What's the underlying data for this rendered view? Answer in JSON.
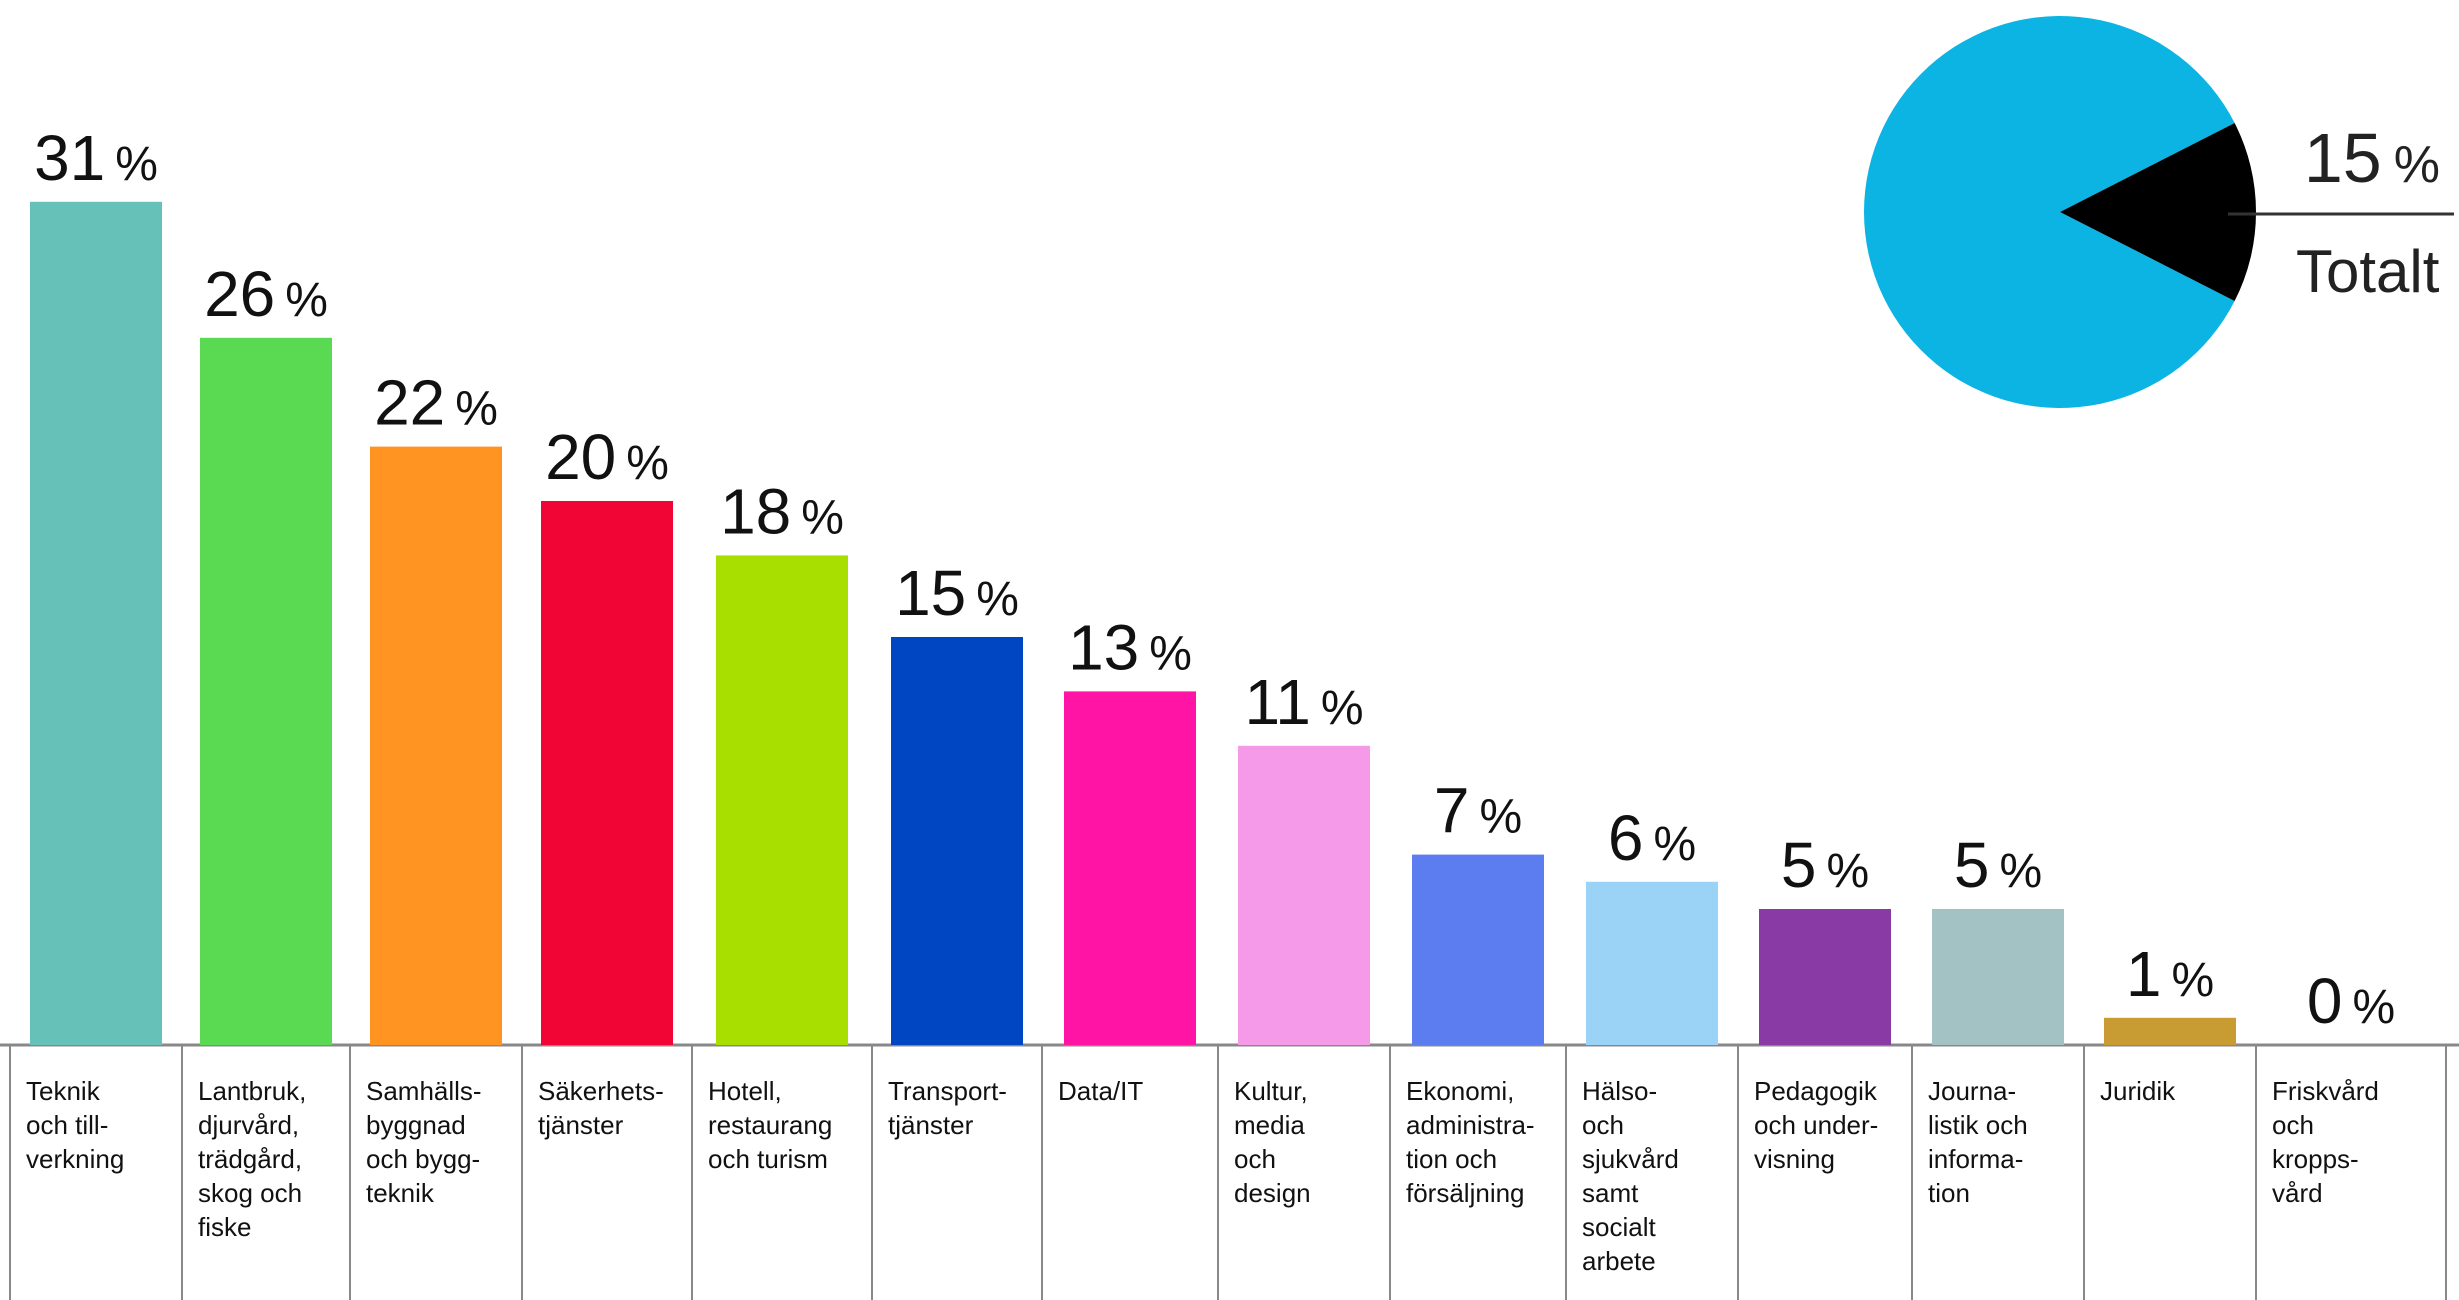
{
  "chart_data": [
    {
      "type": "bar",
      "unit": "%",
      "categories": [
        [
          "Teknik",
          "och till-",
          "verkning"
        ],
        [
          "Lantbruk,",
          "djurvård,",
          "trädgård,",
          "skog och",
          "fiske"
        ],
        [
          "Samhälls-",
          "byggnad",
          "och bygg-",
          "teknik"
        ],
        [
          "Säkerhets-",
          "tjänster"
        ],
        [
          "Hotell,",
          "restaurang",
          "och turism"
        ],
        [
          "Transport-",
          "tjänster"
        ],
        [
          "Data/IT"
        ],
        [
          "Kultur,",
          "media",
          "och",
          "design"
        ],
        [
          "Ekonomi,",
          "administra-",
          "tion och",
          "försäljning"
        ],
        [
          "Hälso-",
          "och",
          "sjukvård",
          "samt",
          "socialt",
          "arbete"
        ],
        [
          "Pedagogik",
          "och under-",
          "visning"
        ],
        [
          "Journa-",
          "listik och",
          "informa-",
          "tion"
        ],
        [
          "Juridik"
        ],
        [
          "Friskvård",
          "och",
          "kropps-",
          "vård"
        ]
      ],
      "values": [
        31,
        26,
        22,
        20,
        18,
        15,
        13,
        11,
        7,
        6,
        5,
        5,
        1,
        0
      ],
      "colors": [
        "#66c1b8",
        "#5ad952",
        "#ff9422",
        "#f00535",
        "#a8de00",
        "#0046c2",
        "#ff14a5",
        "#f59ae8",
        "#5c7df0",
        "#9ad3f6",
        "#8a3aa5",
        "#a3c2c4",
        "#c89b33",
        "#ffffff"
      ]
    },
    {
      "type": "pie",
      "value": 15,
      "unit": "%",
      "label": "Totalt",
      "slice_colors": {
        "value": "#000000",
        "rest": "#0cb4e4"
      }
    }
  ]
}
